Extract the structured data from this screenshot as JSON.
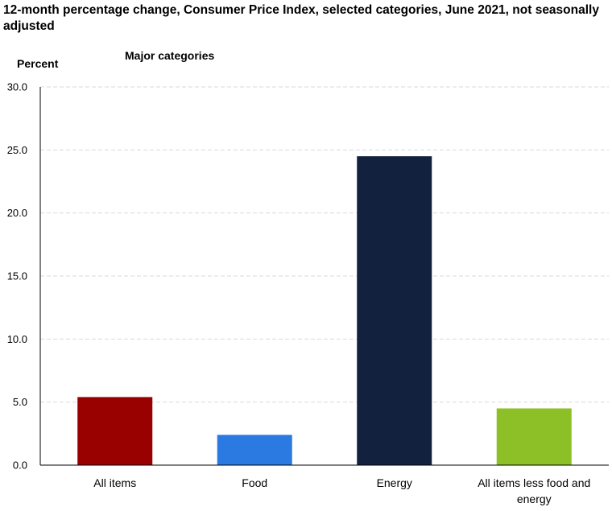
{
  "chart_data": {
    "type": "bar",
    "title": "12-month percentage change, Consumer Price Index, selected categories, June 2021, not seasonally adjusted",
    "subtitle": "Major categories",
    "ylabel": "Percent",
    "xlabel": "",
    "ylim": [
      0,
      30
    ],
    "yticks": [
      "0.0",
      "5.0",
      "10.0",
      "15.0",
      "20.0",
      "25.0",
      "30.0"
    ],
    "grid": true,
    "categories": [
      "All items",
      "Food",
      "Energy",
      "All items less food and energy"
    ],
    "values": [
      5.4,
      2.4,
      24.5,
      4.5
    ],
    "colors": [
      "#990000",
      "#2a7ae2",
      "#12213d",
      "#8dbf27"
    ],
    "gridline_color": "#d9d9d9"
  }
}
